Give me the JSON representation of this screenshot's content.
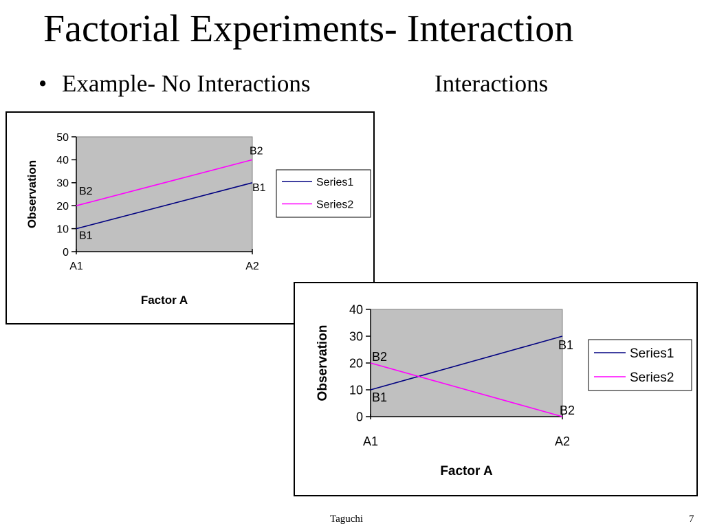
{
  "slide": {
    "title": "Factorial Experiments- Interaction",
    "bullet": "Example- No Interactions",
    "right_heading": "Interactions",
    "footer_center": "Taguchi",
    "page_number": "7"
  },
  "colors": {
    "series1": "#000080",
    "series2": "#ff00ff",
    "plot_bg": "#c0c0c0"
  },
  "chart_data": [
    {
      "type": "line",
      "categories": [
        "A1",
        "A2"
      ],
      "series": [
        {
          "name": "Series1",
          "values": [
            10,
            30
          ],
          "point_labels": [
            "B1",
            "B1"
          ]
        },
        {
          "name": "Series2",
          "values": [
            20,
            40
          ],
          "point_labels": [
            "B2",
            "B2"
          ]
        }
      ],
      "xlabel": "Factor A",
      "ylabel": "Observation",
      "ylim": [
        0,
        50
      ],
      "yticks": [
        0,
        10,
        20,
        30,
        40,
        50
      ],
      "grid": false,
      "legend": "right"
    },
    {
      "type": "line",
      "categories": [
        "A1",
        "A2"
      ],
      "series": [
        {
          "name": "Series1",
          "values": [
            10,
            30
          ],
          "point_labels": [
            "B1",
            "B1"
          ]
        },
        {
          "name": "Series2",
          "values": [
            20,
            0
          ],
          "point_labels": [
            "B2",
            "B2"
          ]
        }
      ],
      "xlabel": "Factor A",
      "ylabel": "Observation",
      "ylim": [
        0,
        40
      ],
      "yticks": [
        0,
        10,
        20,
        30,
        40
      ],
      "grid": false,
      "legend": "right"
    }
  ]
}
